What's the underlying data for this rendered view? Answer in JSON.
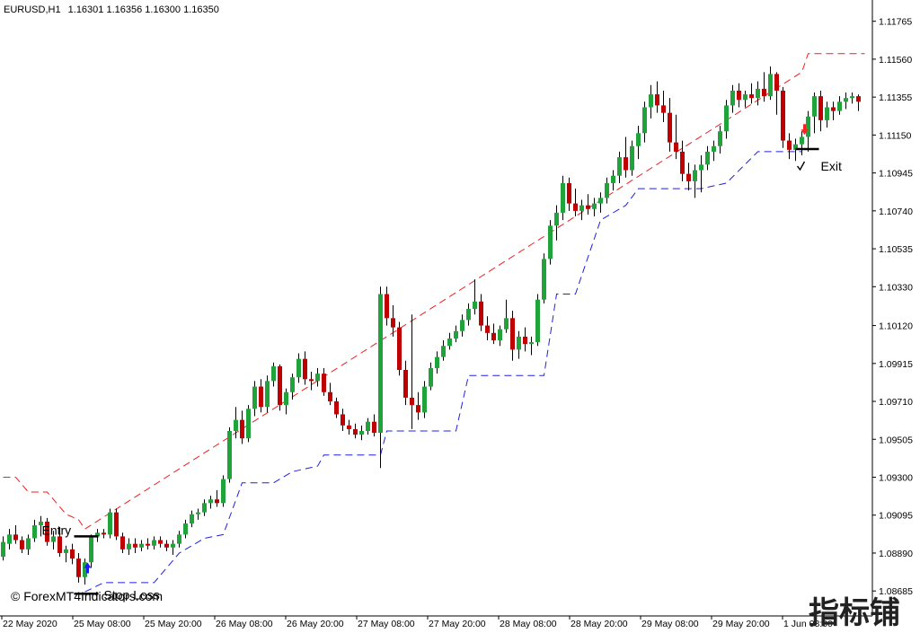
{
  "header": {
    "symbol_label": "EURUSD,H1",
    "ohlc": "1.16301 1.16356 1.16300 1.16350"
  },
  "copyright": "© ForexMT4Indicators.com",
  "watermark": "指标铺",
  "chart_data": {
    "type": "candlestick",
    "title": "",
    "ylim": [
      1.0855,
      1.1188
    ],
    "y_ticks": [
      1.11765,
      1.1156,
      1.11355,
      1.1115,
      1.10945,
      1.1074,
      1.10535,
      1.1033,
      1.1012,
      1.09915,
      1.0971,
      1.09505,
      1.093,
      1.09095,
      1.0889,
      1.08685
    ],
    "y_tick_labels": [
      "1.11765",
      "1.11560",
      "1.11355",
      "1.11150",
      "1.10945",
      "1.10740",
      "1.10535",
      "1.10330",
      "1.10120",
      "1.09915",
      "1.09710",
      "1.09505",
      "1.09300",
      "1.09095",
      "1.08890",
      "1.08685"
    ],
    "x_tick_labels": [
      "22 May 2020",
      "25 May 08:00",
      "25 May 20:00",
      "26 May 08:00",
      "26 May 20:00",
      "27 May 08:00",
      "27 May 20:00",
      "28 May 08:00",
      "28 May 20:00",
      "29 May 08:00",
      "29 May 20:00",
      "1 Jun 08:00"
    ],
    "grid": false,
    "colors": {
      "bull": "#1fa33a",
      "bear": "#c00000",
      "wick": "#000000",
      "stop_lower": "#2020e0",
      "stop_upper": "#ee2020",
      "buy_arrow": "#1a1aff",
      "sell_arrow": "#ff2020"
    },
    "candles": [
      {
        "o": 1.0887,
        "h": 1.0898,
        "l": 1.0885,
        "c": 1.0895
      },
      {
        "o": 1.0894,
        "h": 1.0902,
        "l": 1.0891,
        "c": 1.0899
      },
      {
        "o": 1.0899,
        "h": 1.0904,
        "l": 1.0894,
        "c": 1.0896
      },
      {
        "o": 1.0896,
        "h": 1.0898,
        "l": 1.0889,
        "c": 1.0891
      },
      {
        "o": 1.0891,
        "h": 1.0899,
        "l": 1.0888,
        "c": 1.0897
      },
      {
        "o": 1.0897,
        "h": 1.0907,
        "l": 1.0895,
        "c": 1.0904
      },
      {
        "o": 1.0904,
        "h": 1.0909,
        "l": 1.0898,
        "c": 1.0906
      },
      {
        "o": 1.0906,
        "h": 1.0908,
        "l": 1.0893,
        "c": 1.0895
      },
      {
        "o": 1.0895,
        "h": 1.0901,
        "l": 1.0891,
        "c": 1.0898
      },
      {
        "o": 1.0898,
        "h": 1.0903,
        "l": 1.0887,
        "c": 1.0889
      },
      {
        "o": 1.0889,
        "h": 1.0893,
        "l": 1.0884,
        "c": 1.0891
      },
      {
        "o": 1.0891,
        "h": 1.0894,
        "l": 1.0883,
        "c": 1.0886
      },
      {
        "o": 1.0886,
        "h": 1.0889,
        "l": 1.0873,
        "c": 1.0876
      },
      {
        "o": 1.0876,
        "h": 1.0886,
        "l": 1.0872,
        "c": 1.0884
      },
      {
        "o": 1.0884,
        "h": 1.0899,
        "l": 1.0881,
        "c": 1.0898
      },
      {
        "o": 1.0898,
        "h": 1.0902,
        "l": 1.0895,
        "c": 1.09
      },
      {
        "o": 1.09,
        "h": 1.0902,
        "l": 1.0897,
        "c": 1.0899
      },
      {
        "o": 1.0899,
        "h": 1.0913,
        "l": 1.0897,
        "c": 1.0911
      },
      {
        "o": 1.0911,
        "h": 1.0913,
        "l": 1.0896,
        "c": 1.0898
      },
      {
        "o": 1.0898,
        "h": 1.09,
        "l": 1.0889,
        "c": 1.0891
      },
      {
        "o": 1.0891,
        "h": 1.0897,
        "l": 1.0888,
        "c": 1.0894
      },
      {
        "o": 1.0894,
        "h": 1.0897,
        "l": 1.0889,
        "c": 1.0892
      },
      {
        "o": 1.0892,
        "h": 1.0896,
        "l": 1.089,
        "c": 1.0894
      },
      {
        "o": 1.0894,
        "h": 1.0897,
        "l": 1.0891,
        "c": 1.0893
      },
      {
        "o": 1.0893,
        "h": 1.0898,
        "l": 1.0891,
        "c": 1.0896
      },
      {
        "o": 1.0896,
        "h": 1.0898,
        "l": 1.0892,
        "c": 1.0894
      },
      {
        "o": 1.0894,
        "h": 1.0896,
        "l": 1.089,
        "c": 1.0892
      },
      {
        "o": 1.0892,
        "h": 1.0896,
        "l": 1.0888,
        "c": 1.0894
      },
      {
        "o": 1.0894,
        "h": 1.0901,
        "l": 1.0892,
        "c": 1.0899
      },
      {
        "o": 1.0899,
        "h": 1.0907,
        "l": 1.0897,
        "c": 1.0905
      },
      {
        "o": 1.0905,
        "h": 1.0912,
        "l": 1.0903,
        "c": 1.091
      },
      {
        "o": 1.091,
        "h": 1.0913,
        "l": 1.0907,
        "c": 1.0911
      },
      {
        "o": 1.0911,
        "h": 1.0918,
        "l": 1.0909,
        "c": 1.0916
      },
      {
        "o": 1.0916,
        "h": 1.092,
        "l": 1.0913,
        "c": 1.0918
      },
      {
        "o": 1.0918,
        "h": 1.0923,
        "l": 1.0914,
        "c": 1.0916
      },
      {
        "o": 1.0916,
        "h": 1.0931,
        "l": 1.0914,
        "c": 1.0929
      },
      {
        "o": 1.0929,
        "h": 1.0957,
        "l": 1.0927,
        "c": 1.0955
      },
      {
        "o": 1.0955,
        "h": 1.0968,
        "l": 1.0951,
        "c": 1.0961
      },
      {
        "o": 1.0961,
        "h": 1.0966,
        "l": 1.0948,
        "c": 1.0951
      },
      {
        "o": 1.0951,
        "h": 1.0969,
        "l": 1.0949,
        "c": 1.0967
      },
      {
        "o": 1.0967,
        "h": 1.0982,
        "l": 1.0963,
        "c": 1.0979
      },
      {
        "o": 1.0979,
        "h": 1.0983,
        "l": 1.0965,
        "c": 1.0968
      },
      {
        "o": 1.0968,
        "h": 1.0985,
        "l": 1.0965,
        "c": 1.0982
      },
      {
        "o": 1.0982,
        "h": 1.0992,
        "l": 1.0979,
        "c": 1.099
      },
      {
        "o": 1.099,
        "h": 1.0991,
        "l": 1.0966,
        "c": 1.0969
      },
      {
        "o": 1.0969,
        "h": 1.0978,
        "l": 1.0964,
        "c": 1.0976
      },
      {
        "o": 1.0976,
        "h": 1.0986,
        "l": 1.0972,
        "c": 1.0984
      },
      {
        "o": 1.0984,
        "h": 1.0997,
        "l": 1.0981,
        "c": 1.0994
      },
      {
        "o": 1.0994,
        "h": 1.0998,
        "l": 1.098,
        "c": 1.0983
      },
      {
        "o": 1.0983,
        "h": 1.0987,
        "l": 1.0977,
        "c": 1.0982
      },
      {
        "o": 1.0982,
        "h": 1.0989,
        "l": 1.0979,
        "c": 1.0986
      },
      {
        "o": 1.0986,
        "h": 1.0989,
        "l": 1.0974,
        "c": 1.0976
      },
      {
        "o": 1.0976,
        "h": 1.0981,
        "l": 1.0969,
        "c": 1.0971
      },
      {
        "o": 1.0971,
        "h": 1.0973,
        "l": 1.0962,
        "c": 1.0964
      },
      {
        "o": 1.0964,
        "h": 1.0967,
        "l": 1.0955,
        "c": 1.0958
      },
      {
        "o": 1.0958,
        "h": 1.0961,
        "l": 1.0953,
        "c": 1.0956
      },
      {
        "o": 1.0956,
        "h": 1.0959,
        "l": 1.0951,
        "c": 1.0953
      },
      {
        "o": 1.0953,
        "h": 1.0958,
        "l": 1.095,
        "c": 1.0955
      },
      {
        "o": 1.0955,
        "h": 1.0962,
        "l": 1.0953,
        "c": 1.096
      },
      {
        "o": 1.096,
        "h": 1.0964,
        "l": 1.0952,
        "c": 1.0954
      },
      {
        "o": 1.0954,
        "h": 1.1033,
        "l": 1.0935,
        "c": 1.1029
      },
      {
        "o": 1.1029,
        "h": 1.1033,
        "l": 1.1012,
        "c": 1.1016
      },
      {
        "o": 1.1016,
        "h": 1.1023,
        "l": 1.1006,
        "c": 1.1011
      },
      {
        "o": 1.1011,
        "h": 1.1014,
        "l": 1.0985,
        "c": 1.0988
      },
      {
        "o": 1.0988,
        "h": 1.0993,
        "l": 1.0969,
        "c": 1.0973
      },
      {
        "o": 1.0973,
        "h": 1.1018,
        "l": 1.0956,
        "c": 1.0969
      },
      {
        "o": 1.0969,
        "h": 1.0976,
        "l": 1.0961,
        "c": 1.0965
      },
      {
        "o": 1.0965,
        "h": 1.0982,
        "l": 1.0962,
        "c": 1.0979
      },
      {
        "o": 1.0979,
        "h": 1.0992,
        "l": 1.0977,
        "c": 1.0989
      },
      {
        "o": 1.0989,
        "h": 1.0998,
        "l": 1.0986,
        "c": 1.0995
      },
      {
        "o": 1.0995,
        "h": 1.1004,
        "l": 1.0993,
        "c": 1.1001
      },
      {
        "o": 1.1001,
        "h": 1.1008,
        "l": 1.0999,
        "c": 1.1005
      },
      {
        "o": 1.1005,
        "h": 1.1012,
        "l": 1.1003,
        "c": 1.1009
      },
      {
        "o": 1.1009,
        "h": 1.1018,
        "l": 1.1006,
        "c": 1.1015
      },
      {
        "o": 1.1015,
        "h": 1.1024,
        "l": 1.1012,
        "c": 1.1021
      },
      {
        "o": 1.1021,
        "h": 1.1037,
        "l": 1.1018,
        "c": 1.1025
      },
      {
        "o": 1.1025,
        "h": 1.1029,
        "l": 1.1009,
        "c": 1.1012
      },
      {
        "o": 1.1012,
        "h": 1.1017,
        "l": 1.1004,
        "c": 1.1008
      },
      {
        "o": 1.1008,
        "h": 1.1013,
        "l": 1.1002,
        "c": 1.1004
      },
      {
        "o": 1.1004,
        "h": 1.1012,
        "l": 1.1001,
        "c": 1.101
      },
      {
        "o": 1.101,
        "h": 1.1026,
        "l": 1.1008,
        "c": 1.1016
      },
      {
        "o": 1.1016,
        "h": 1.102,
        "l": 1.0993,
        "c": 1.0999
      },
      {
        "o": 1.0999,
        "h": 1.1009,
        "l": 1.0994,
        "c": 1.1006
      },
      {
        "o": 1.1006,
        "h": 1.1011,
        "l": 1.0998,
        "c": 1.1002
      },
      {
        "o": 1.1002,
        "h": 1.1006,
        "l": 1.0996,
        "c": 1.1003
      },
      {
        "o": 1.1003,
        "h": 1.1029,
        "l": 1.1001,
        "c": 1.1026
      },
      {
        "o": 1.1026,
        "h": 1.1051,
        "l": 1.1024,
        "c": 1.1048
      },
      {
        "o": 1.1048,
        "h": 1.1069,
        "l": 1.1045,
        "c": 1.1066
      },
      {
        "o": 1.1066,
        "h": 1.1077,
        "l": 1.1058,
        "c": 1.1073
      },
      {
        "o": 1.1073,
        "h": 1.1093,
        "l": 1.1069,
        "c": 1.1089
      },
      {
        "o": 1.1089,
        "h": 1.1092,
        "l": 1.1074,
        "c": 1.1078
      },
      {
        "o": 1.1078,
        "h": 1.1086,
        "l": 1.1071,
        "c": 1.1074
      },
      {
        "o": 1.1074,
        "h": 1.108,
        "l": 1.1069,
        "c": 1.1077
      },
      {
        "o": 1.1077,
        "h": 1.1083,
        "l": 1.1072,
        "c": 1.1075
      },
      {
        "o": 1.1075,
        "h": 1.1081,
        "l": 1.1071,
        "c": 1.1078
      },
      {
        "o": 1.1078,
        "h": 1.1084,
        "l": 1.1073,
        "c": 1.1081
      },
      {
        "o": 1.1081,
        "h": 1.1092,
        "l": 1.1078,
        "c": 1.1089
      },
      {
        "o": 1.1089,
        "h": 1.1096,
        "l": 1.1085,
        "c": 1.1093
      },
      {
        "o": 1.1093,
        "h": 1.1106,
        "l": 1.1089,
        "c": 1.1103
      },
      {
        "o": 1.1103,
        "h": 1.1114,
        "l": 1.1092,
        "c": 1.1096
      },
      {
        "o": 1.1096,
        "h": 1.1112,
        "l": 1.1093,
        "c": 1.1109
      },
      {
        "o": 1.1109,
        "h": 1.112,
        "l": 1.1102,
        "c": 1.1116
      },
      {
        "o": 1.1116,
        "h": 1.1133,
        "l": 1.1111,
        "c": 1.113
      },
      {
        "o": 1.113,
        "h": 1.1142,
        "l": 1.1124,
        "c": 1.1137
      },
      {
        "o": 1.1137,
        "h": 1.1144,
        "l": 1.1127,
        "c": 1.1131
      },
      {
        "o": 1.1131,
        "h": 1.1139,
        "l": 1.1122,
        "c": 1.1127
      },
      {
        "o": 1.1127,
        "h": 1.1135,
        "l": 1.1106,
        "c": 1.1111
      },
      {
        "o": 1.1111,
        "h": 1.1126,
        "l": 1.1102,
        "c": 1.1106
      },
      {
        "o": 1.1106,
        "h": 1.1112,
        "l": 1.109,
        "c": 1.1094
      },
      {
        "o": 1.1094,
        "h": 1.11,
        "l": 1.1085,
        "c": 1.109
      },
      {
        "o": 1.109,
        "h": 1.1099,
        "l": 1.1081,
        "c": 1.1096
      },
      {
        "o": 1.1096,
        "h": 1.1104,
        "l": 1.1084,
        "c": 1.1099
      },
      {
        "o": 1.1099,
        "h": 1.1109,
        "l": 1.1096,
        "c": 1.1106
      },
      {
        "o": 1.1106,
        "h": 1.1112,
        "l": 1.1101,
        "c": 1.1109
      },
      {
        "o": 1.1109,
        "h": 1.112,
        "l": 1.1105,
        "c": 1.1117
      },
      {
        "o": 1.1117,
        "h": 1.1134,
        "l": 1.1113,
        "c": 1.1131
      },
      {
        "o": 1.1131,
        "h": 1.1142,
        "l": 1.1127,
        "c": 1.1139
      },
      {
        "o": 1.1139,
        "h": 1.1143,
        "l": 1.113,
        "c": 1.1134
      },
      {
        "o": 1.1134,
        "h": 1.1139,
        "l": 1.113,
        "c": 1.1137
      },
      {
        "o": 1.1137,
        "h": 1.1143,
        "l": 1.1132,
        "c": 1.1135
      },
      {
        "o": 1.1135,
        "h": 1.1144,
        "l": 1.1131,
        "c": 1.114
      },
      {
        "o": 1.114,
        "h": 1.1149,
        "l": 1.1133,
        "c": 1.1136
      },
      {
        "o": 1.1136,
        "h": 1.1152,
        "l": 1.1134,
        "c": 1.1148
      },
      {
        "o": 1.1148,
        "h": 1.1149,
        "l": 1.1126,
        "c": 1.1139
      },
      {
        "o": 1.1139,
        "h": 1.1141,
        "l": 1.1108,
        "c": 1.1112
      },
      {
        "o": 1.1112,
        "h": 1.1116,
        "l": 1.1102,
        "c": 1.1107
      },
      {
        "o": 1.1107,
        "h": 1.1113,
        "l": 1.1101,
        "c": 1.111
      },
      {
        "o": 1.111,
        "h": 1.1117,
        "l": 1.1104,
        "c": 1.1114
      },
      {
        "o": 1.1114,
        "h": 1.1128,
        "l": 1.1106,
        "c": 1.1125
      },
      {
        "o": 1.1125,
        "h": 1.1138,
        "l": 1.1116,
        "c": 1.1136
      },
      {
        "o": 1.1136,
        "h": 1.1139,
        "l": 1.1117,
        "c": 1.1123
      },
      {
        "o": 1.1123,
        "h": 1.1133,
        "l": 1.1119,
        "c": 1.113
      },
      {
        "o": 1.113,
        "h": 1.1133,
        "l": 1.1123,
        "c": 1.1128
      },
      {
        "o": 1.1128,
        "h": 1.1136,
        "l": 1.1126,
        "c": 1.1133
      },
      {
        "o": 1.1133,
        "h": 1.1138,
        "l": 1.1129,
        "c": 1.1135
      },
      {
        "o": 1.1135,
        "h": 1.1138,
        "l": 1.1132,
        "c": 1.1136
      },
      {
        "o": 1.1136,
        "h": 1.1137,
        "l": 1.1128,
        "c": 1.1133
      }
    ],
    "stop_lower": [
      [
        13,
        1.0868
      ],
      [
        16,
        1.0873
      ],
      [
        24,
        1.0873
      ],
      [
        28,
        1.0889
      ],
      [
        32,
        1.0897
      ],
      [
        35,
        1.0899
      ],
      [
        38,
        1.0927
      ],
      [
        43,
        1.0927
      ],
      [
        46,
        1.0933
      ],
      [
        50,
        1.0936
      ],
      [
        51,
        1.0942
      ],
      [
        60,
        1.0942
      ],
      [
        61,
        1.0955
      ],
      [
        72,
        1.0955
      ],
      [
        74,
        1.0985
      ],
      [
        86,
        1.0985
      ],
      [
        88,
        1.1029
      ],
      [
        91,
        1.1029
      ],
      [
        95,
        1.1069
      ],
      [
        99,
        1.1077
      ],
      [
        101,
        1.1086
      ],
      [
        108,
        1.1086
      ],
      [
        111,
        1.1086
      ],
      [
        115,
        1.1089
      ],
      [
        120,
        1.1106
      ],
      [
        127,
        1.1106
      ]
    ],
    "stop_upper": [
      [
        0,
        1.093
      ],
      [
        2,
        1.093
      ],
      [
        4,
        1.0922
      ],
      [
        7,
        1.0922
      ],
      [
        10,
        1.091
      ],
      [
        12,
        1.0907
      ],
      [
        13,
        1.0902
      ],
      [
        127,
        1.1149
      ],
      [
        128,
        1.1159
      ],
      [
        137,
        1.1159
      ]
    ],
    "annotations": {
      "entry": {
        "text": "Entry",
        "bar": 13,
        "price": 1.0898
      },
      "stop_loss": {
        "text": "Stop Loss",
        "bar": 13,
        "price": 1.0867
      },
      "exit": {
        "text": "Exit",
        "bar": 128,
        "price": 1.1105
      },
      "buy_arrow_bar": 13,
      "sell_arrow_bar": 127
    }
  }
}
